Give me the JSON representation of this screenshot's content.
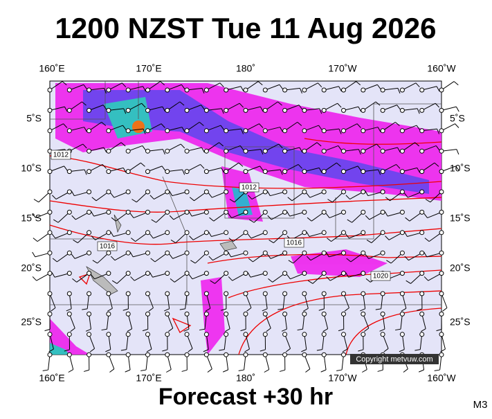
{
  "title": "1200 NZST Tue 11 Aug 2026",
  "footer": "Forecast +30 hr",
  "corner_label": "M3",
  "copyright": "Copyright metvuw.com",
  "longitude_labels": [
    "160˚E",
    "170˚E",
    "180˚",
    "170˚W",
    "160˚W"
  ],
  "latitude_labels": [
    "5˚S",
    "10˚S",
    "15˚S",
    "20˚S",
    "25˚S"
  ],
  "isobar_labels": [
    "1012",
    "1012",
    "1016",
    "1016",
    "1020"
  ]
}
